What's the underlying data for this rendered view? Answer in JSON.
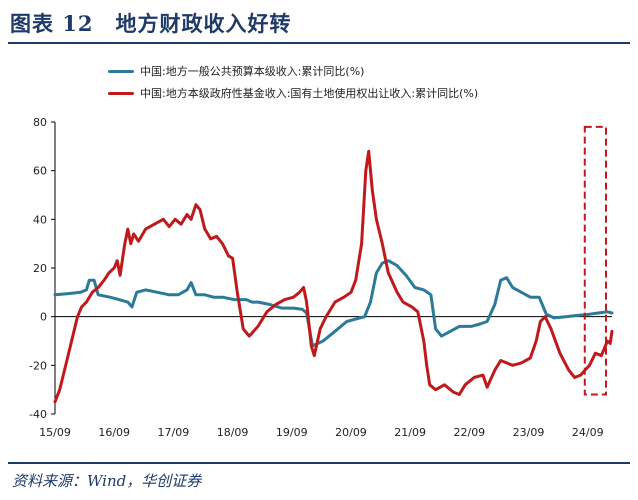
{
  "header": {
    "title": "图表 12　地方财政收入好转"
  },
  "footer": {
    "source": "资料来源：Wind，华创证券"
  },
  "colors": {
    "series_general": "#2b7a99",
    "series_fund": "#c0191c",
    "highlight": "#c0191c",
    "title": "#1f3a68"
  },
  "chart_data": {
    "type": "line",
    "legend_position": "top-left",
    "grid": false,
    "ylim": [
      -40,
      80
    ],
    "yticks": [
      80,
      60,
      40,
      20,
      0,
      -20,
      -40
    ],
    "xlim": [
      2015.67,
      2025.08
    ],
    "xticks": [
      {
        "label": "15/09",
        "x": 2015.67
      },
      {
        "label": "16/09",
        "x": 2016.67
      },
      {
        "label": "17/09",
        "x": 2017.67
      },
      {
        "label": "18/09",
        "x": 2018.67
      },
      {
        "label": "19/09",
        "x": 2019.67
      },
      {
        "label": "20/09",
        "x": 2020.67
      },
      {
        "label": "21/09",
        "x": 2021.67
      },
      {
        "label": "22/09",
        "x": 2022.67
      },
      {
        "label": "23/09",
        "x": 2023.67
      },
      {
        "label": "24/09",
        "x": 2024.67
      }
    ],
    "highlight_range": {
      "x0": 2024.62,
      "x1": 2025.2,
      "y0": -32,
      "y1": 78
    },
    "series": [
      {
        "name": "中国:地方一般公共预算本级收入:累计同比(%)",
        "points": [
          [
            2015.67,
            9
          ],
          [
            2015.9,
            9.5
          ],
          [
            2016.1,
            10
          ],
          [
            2016.2,
            11
          ],
          [
            2016.25,
            15
          ],
          [
            2016.33,
            15
          ],
          [
            2016.4,
            9
          ],
          [
            2016.6,
            8
          ],
          [
            2016.75,
            7
          ],
          [
            2016.9,
            6
          ],
          [
            2016.97,
            4
          ],
          [
            2017.05,
            10
          ],
          [
            2017.2,
            11
          ],
          [
            2017.4,
            10
          ],
          [
            2017.6,
            9
          ],
          [
            2017.75,
            9
          ],
          [
            2017.9,
            11
          ],
          [
            2017.97,
            14
          ],
          [
            2018.05,
            9
          ],
          [
            2018.2,
            9
          ],
          [
            2018.35,
            8
          ],
          [
            2018.5,
            8
          ],
          [
            2018.7,
            7
          ],
          [
            2018.9,
            7
          ],
          [
            2019.0,
            6
          ],
          [
            2019.1,
            6
          ],
          [
            2019.3,
            5
          ],
          [
            2019.5,
            3.5
          ],
          [
            2019.7,
            3.5
          ],
          [
            2019.85,
            3
          ],
          [
            2019.92,
            1.5
          ],
          [
            2020.02,
            -12
          ],
          [
            2020.2,
            -10
          ],
          [
            2020.4,
            -6
          ],
          [
            2020.6,
            -2
          ],
          [
            2020.75,
            -1
          ],
          [
            2020.9,
            0
          ],
          [
            2021.0,
            6
          ],
          [
            2021.1,
            18
          ],
          [
            2021.2,
            22
          ],
          [
            2021.3,
            23
          ],
          [
            2021.45,
            21
          ],
          [
            2021.6,
            17
          ],
          [
            2021.75,
            12
          ],
          [
            2021.9,
            11
          ],
          [
            2022.02,
            9
          ],
          [
            2022.1,
            -5
          ],
          [
            2022.2,
            -8
          ],
          [
            2022.35,
            -6
          ],
          [
            2022.5,
            -4
          ],
          [
            2022.7,
            -4
          ],
          [
            2022.85,
            -3
          ],
          [
            2022.97,
            -2
          ],
          [
            2023.1,
            5
          ],
          [
            2023.2,
            15
          ],
          [
            2023.3,
            16
          ],
          [
            2023.4,
            12
          ],
          [
            2023.55,
            10
          ],
          [
            2023.7,
            8
          ],
          [
            2023.85,
            8
          ],
          [
            2023.97,
            1
          ],
          [
            2024.1,
            -0.5
          ],
          [
            2024.3,
            0
          ],
          [
            2024.5,
            0.5
          ],
          [
            2024.7,
            1
          ],
          [
            2024.85,
            1.5
          ],
          [
            2025.0,
            2
          ],
          [
            2025.08,
            1.5
          ]
        ]
      },
      {
        "name": "中国:地方本级政府性基金收入:国有土地使用权出让收入:累计同比(%)",
        "points": [
          [
            2015.67,
            -35
          ],
          [
            2015.75,
            -30
          ],
          [
            2015.85,
            -20
          ],
          [
            2015.95,
            -10
          ],
          [
            2016.05,
            0
          ],
          [
            2016.12,
            4
          ],
          [
            2016.2,
            6
          ],
          [
            2016.3,
            10
          ],
          [
            2016.4,
            12
          ],
          [
            2016.5,
            15
          ],
          [
            2016.58,
            18
          ],
          [
            2016.67,
            20
          ],
          [
            2016.72,
            23
          ],
          [
            2016.77,
            17
          ],
          [
            2016.85,
            30
          ],
          [
            2016.9,
            36
          ],
          [
            2016.95,
            30
          ],
          [
            2017.0,
            34
          ],
          [
            2017.08,
            31
          ],
          [
            2017.2,
            36
          ],
          [
            2017.35,
            38
          ],
          [
            2017.5,
            40
          ],
          [
            2017.6,
            37
          ],
          [
            2017.7,
            40
          ],
          [
            2017.8,
            38
          ],
          [
            2017.9,
            42
          ],
          [
            2017.97,
            40
          ],
          [
            2018.05,
            46
          ],
          [
            2018.12,
            44
          ],
          [
            2018.2,
            36
          ],
          [
            2018.3,
            32
          ],
          [
            2018.4,
            33
          ],
          [
            2018.5,
            30
          ],
          [
            2018.6,
            25
          ],
          [
            2018.67,
            24
          ],
          [
            2018.75,
            10
          ],
          [
            2018.85,
            -5
          ],
          [
            2018.95,
            -8
          ],
          [
            2019.1,
            -4
          ],
          [
            2019.25,
            2
          ],
          [
            2019.4,
            5
          ],
          [
            2019.55,
            7
          ],
          [
            2019.7,
            8
          ],
          [
            2019.8,
            10
          ],
          [
            2019.87,
            12
          ],
          [
            2019.92,
            6
          ],
          [
            2020.0,
            -12
          ],
          [
            2020.05,
            -16
          ],
          [
            2020.15,
            -5
          ],
          [
            2020.25,
            0
          ],
          [
            2020.4,
            6
          ],
          [
            2020.55,
            8
          ],
          [
            2020.67,
            10
          ],
          [
            2020.75,
            15
          ],
          [
            2020.85,
            30
          ],
          [
            2020.92,
            60
          ],
          [
            2020.97,
            68
          ],
          [
            2021.03,
            52
          ],
          [
            2021.1,
            40
          ],
          [
            2021.2,
            30
          ],
          [
            2021.3,
            18
          ],
          [
            2021.45,
            10
          ],
          [
            2021.55,
            6
          ],
          [
            2021.7,
            4
          ],
          [
            2021.8,
            2
          ],
          [
            2021.9,
            -10
          ],
          [
            2021.95,
            -20
          ],
          [
            2022.0,
            -28
          ],
          [
            2022.1,
            -30
          ],
          [
            2022.25,
            -28
          ],
          [
            2022.4,
            -31
          ],
          [
            2022.5,
            -32
          ],
          [
            2022.6,
            -28
          ],
          [
            2022.75,
            -25
          ],
          [
            2022.9,
            -24
          ],
          [
            2022.97,
            -29
          ],
          [
            2023.1,
            -22
          ],
          [
            2023.2,
            -18
          ],
          [
            2023.4,
            -20
          ],
          [
            2023.55,
            -19
          ],
          [
            2023.7,
            -17
          ],
          [
            2023.8,
            -10
          ],
          [
            2023.87,
            -2
          ],
          [
            2023.95,
            0
          ],
          [
            2024.05,
            -5
          ],
          [
            2024.2,
            -15
          ],
          [
            2024.35,
            -22
          ],
          [
            2024.45,
            -25
          ],
          [
            2024.55,
            -24
          ],
          [
            2024.7,
            -20
          ],
          [
            2024.8,
            -15
          ],
          [
            2024.9,
            -16
          ],
          [
            2024.97,
            -12
          ],
          [
            2025.0,
            -10
          ],
          [
            2025.05,
            -11
          ],
          [
            2025.08,
            -6
          ]
        ]
      }
    ]
  }
}
